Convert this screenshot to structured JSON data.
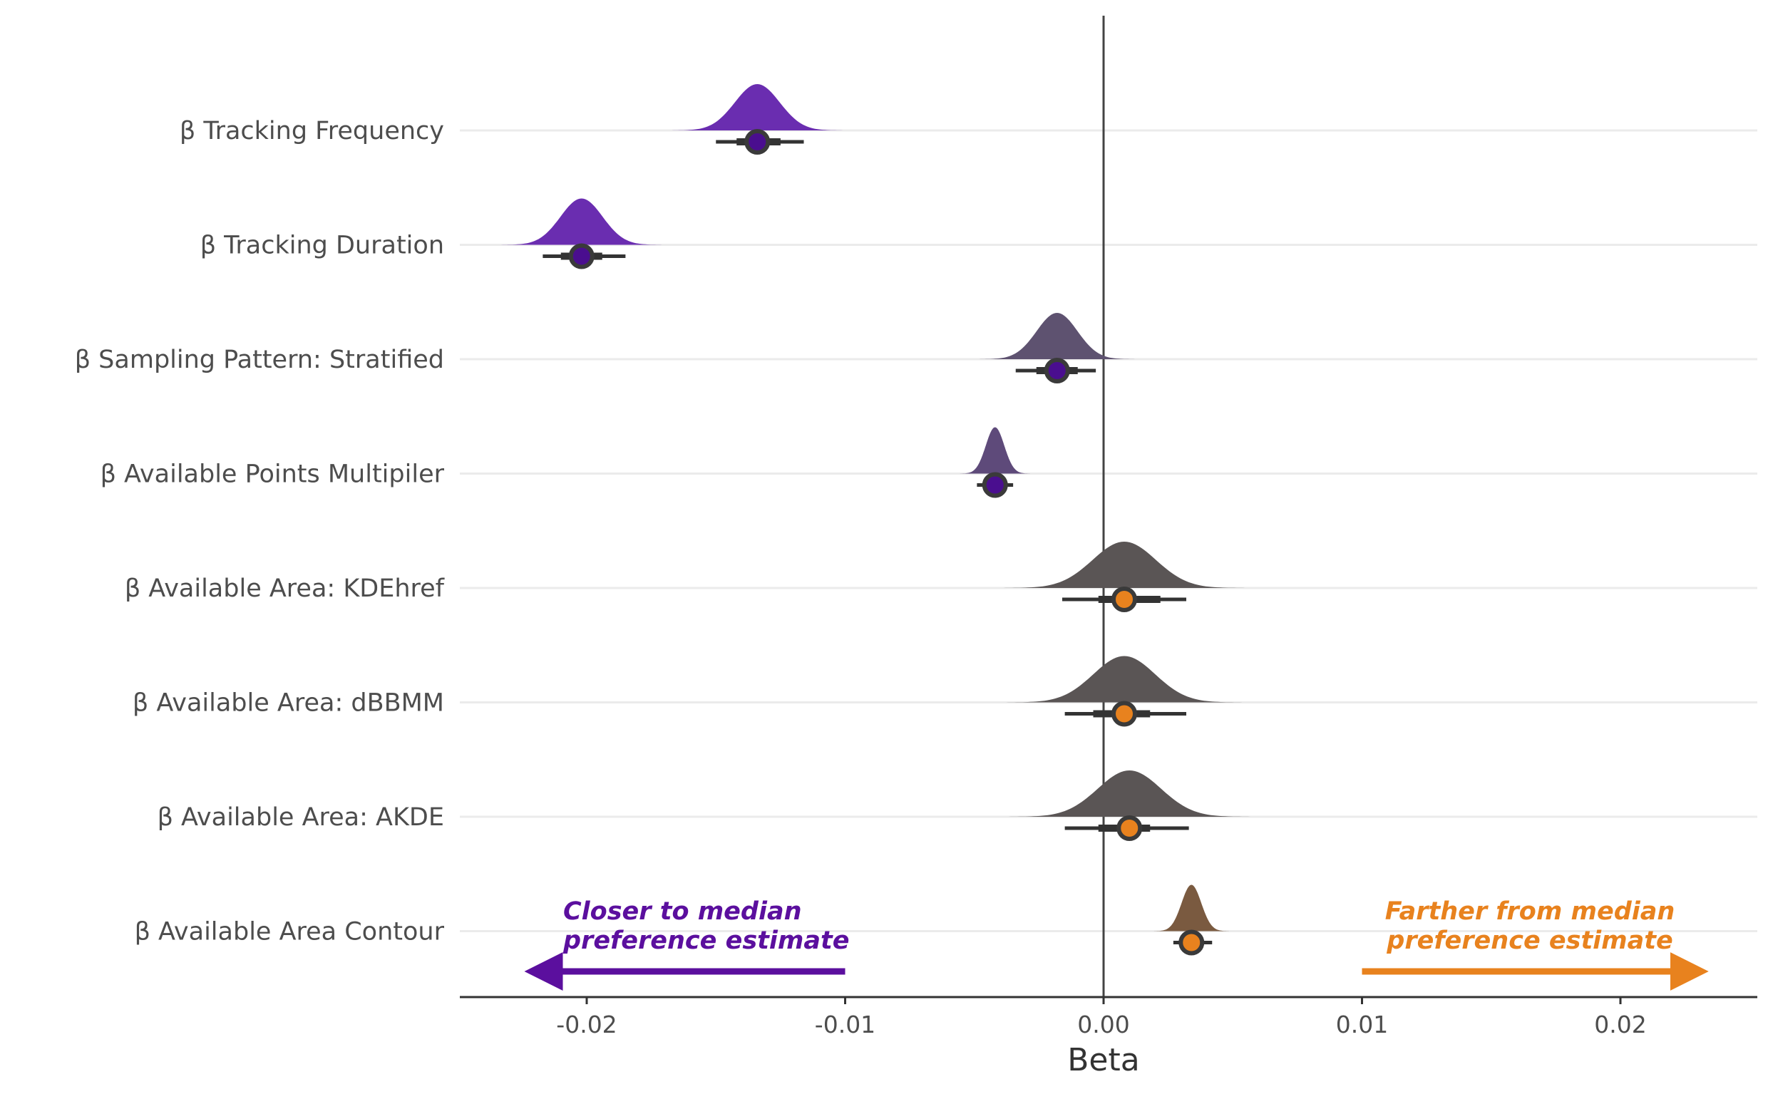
{
  "chart_data": {
    "type": "halfeye",
    "xlabel": "Beta",
    "ylabel": "",
    "xlim": [
      -0.0255,
      0.025
    ],
    "x_ticks": [
      -0.02,
      -0.01,
      0.0,
      0.01,
      0.02
    ],
    "x_tick_labels": [
      "-0.02",
      "-0.01",
      "0.00",
      "0.01",
      "0.02"
    ],
    "grid": "horizontal only",
    "reference_line": 0.0,
    "categories": [
      "β Tracking Frequency",
      "β Tracking Duration",
      "β Sampling Pattern: Stratified",
      "β Available Points Multipiler",
      "β Available Area: KDEhref",
      "β Available Area: dBBMM",
      "β Available Area: AKDE",
      "β Available Area Contour"
    ],
    "series": [
      {
        "label": "β Tracking Frequency",
        "median": -0.0134,
        "interval_66": [
          -0.0142,
          -0.0125
        ],
        "interval_95": [
          -0.015,
          -0.0116
        ],
        "fill": "#6a2db0",
        "point": "#4a0e8f"
      },
      {
        "label": "β Tracking Duration",
        "median": -0.0202,
        "interval_66": [
          -0.021,
          -0.0194
        ],
        "interval_95": [
          -0.0217,
          -0.0185
        ],
        "fill": "#6a2db0",
        "point": "#4a0e8f"
      },
      {
        "label": "β Sampling Pattern: Stratified",
        "median": -0.0018,
        "interval_66": [
          -0.0026,
          -0.001
        ],
        "interval_95": [
          -0.0034,
          -0.0003
        ],
        "fill": "#5e5270",
        "point": "#4a0e8f"
      },
      {
        "label": "β Available Points Multipiler",
        "median": -0.0042,
        "interval_66": [
          -0.0046,
          -0.0038
        ],
        "interval_95": [
          -0.0049,
          -0.0035
        ],
        "fill": "#5e4a7a",
        "point": "#4a0e8f"
      },
      {
        "label": "β Available Area: KDEhref",
        "median": 0.0008,
        "interval_66": [
          -0.0002,
          0.0022
        ],
        "interval_95": [
          -0.0016,
          0.0032
        ],
        "fill": "#5a5555",
        "point": "#e8821e"
      },
      {
        "label": "β Available Area: dBBMM",
        "median": 0.0008,
        "interval_66": [
          -0.0004,
          0.0018
        ],
        "interval_95": [
          -0.0015,
          0.0032
        ],
        "fill": "#5a5555",
        "point": "#e8821e"
      },
      {
        "label": "β Available Area: AKDE",
        "median": 0.001,
        "interval_66": [
          -0.0002,
          0.0018
        ],
        "interval_95": [
          -0.0015,
          0.0033
        ],
        "fill": "#5a5555",
        "point": "#e8821e"
      },
      {
        "label": "β Available Area Contour",
        "median": 0.0034,
        "interval_66": [
          0.003,
          0.0038
        ],
        "interval_95": [
          0.0027,
          0.0042
        ],
        "fill": "#7a5a40",
        "point": "#e8821e"
      }
    ],
    "annotations": [
      {
        "line1": "Closer to median",
        "line2": "preference estimate",
        "color": "#5b0f9e",
        "arrow": "left",
        "arrow_from": -0.01,
        "arrow_to": -0.022
      },
      {
        "line1": "Farther from median",
        "line2": "preference estimate",
        "color": "#e8821e",
        "arrow": "right",
        "arrow_from": 0.01,
        "arrow_to": 0.023
      }
    ],
    "colors": {
      "purple": "#5b0f9e",
      "orange": "#e8821e",
      "interval": "#333333",
      "grid": "#ebebeb",
      "axis": "#333333"
    }
  }
}
